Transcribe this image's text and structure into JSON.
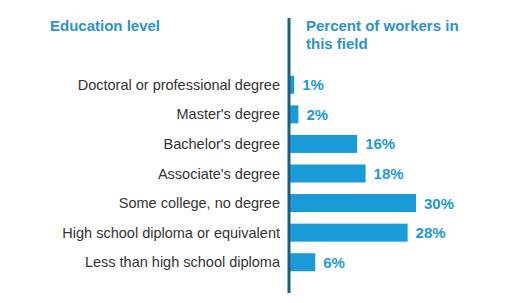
{
  "chart_data": {
    "type": "bar",
    "orientation": "horizontal",
    "x_label": "Education level",
    "y_label": "Percent of workers in this field",
    "categories": [
      "Doctoral or professional degree",
      "Master's degree",
      "Bachelor's degree",
      "Associate's degree",
      "Some college, no degree",
      "High school diploma or equivalent",
      "Less than high school diploma"
    ],
    "values": [
      1,
      2,
      16,
      18,
      30,
      28,
      6
    ],
    "value_labels": [
      "1%",
      "2%",
      "16%",
      "18%",
      "30%",
      "28%",
      "6%"
    ],
    "data_labels": true,
    "tick_labels": "x",
    "color": "#1a9ad6",
    "ylim": [
      0,
      50
    ],
    "grid": false
  }
}
